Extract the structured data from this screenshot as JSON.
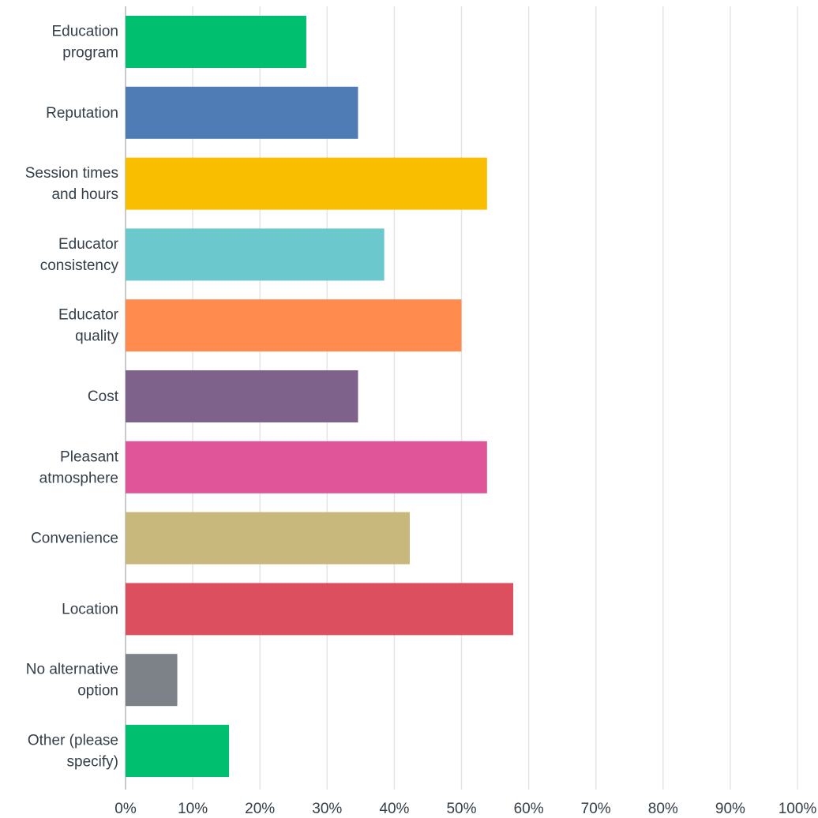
{
  "chart_data": {
    "type": "bar",
    "orientation": "horizontal",
    "title": "",
    "xlabel": "",
    "ylabel": "",
    "xlim": [
      0,
      100
    ],
    "grid": true,
    "categories": [
      [
        "Education",
        "program"
      ],
      [
        "Reputation"
      ],
      [
        "Session times",
        "and hours"
      ],
      [
        "Educator",
        "consistency"
      ],
      [
        "Educator",
        "quality"
      ],
      [
        "Cost"
      ],
      [
        "Pleasant",
        "atmosphere"
      ],
      [
        "Convenience"
      ],
      [
        "Location"
      ],
      [
        "No alternative",
        "option"
      ],
      [
        "Other (please",
        "specify)"
      ]
    ],
    "values": [
      26.9,
      34.6,
      53.8,
      38.5,
      50.0,
      34.6,
      53.8,
      42.3,
      57.7,
      7.7,
      15.4
    ],
    "colors": [
      "#00bf6f",
      "#507cb6",
      "#f9be00",
      "#6bc8cd",
      "#ff8b4f",
      "#7f628b",
      "#e05599",
      "#c9b87b",
      "#dc4f5f",
      "#7c8287",
      "#00bf6f"
    ],
    "tick_labels": [
      "0%",
      "10%",
      "20%",
      "30%",
      "40%",
      "50%",
      "60%",
      "70%",
      "80%",
      "90%",
      "100%"
    ]
  }
}
